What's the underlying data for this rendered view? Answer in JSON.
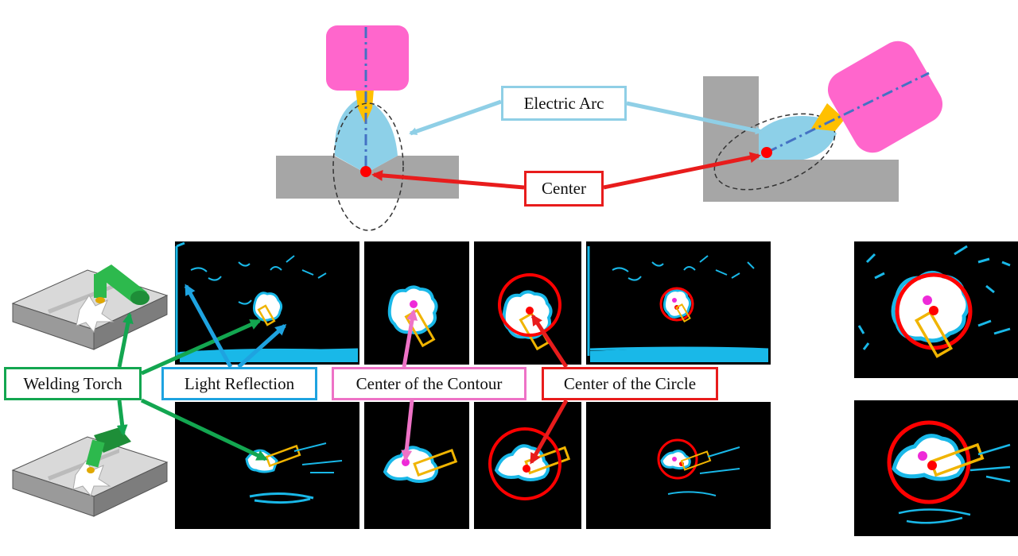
{
  "labels": {
    "electric_arc": "Electric Arc",
    "center": "Center",
    "welding_torch": "Welding Torch",
    "light_reflection": "Light Reflection",
    "center_of_contour": "Center of the Contour",
    "center_of_circle": "Center of the Circle"
  },
  "colors": {
    "torch_body": "#ff66cc",
    "nozzle": "#ffc000",
    "arc": "#8dd0e8",
    "plate": "#a6a6a6",
    "axis": "#4472c4",
    "center_red": "#ff0000",
    "green": "#13a650",
    "blue": "#1ea3e0",
    "pink": "#ee72c6",
    "cyan_blob": "#19b8e8",
    "yellow_rect": "#f0b400"
  },
  "icons": {
    "torch_illustration": "welding-torch-3d-icon"
  }
}
